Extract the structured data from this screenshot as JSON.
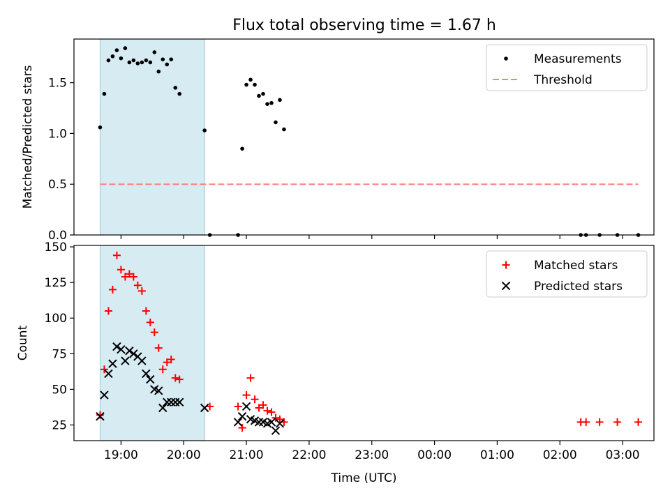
{
  "figure_title": "Flux total observing time = 1.67 h",
  "chart_data": [
    {
      "type": "scatter",
      "ylabel": "Matched/Predicted stars",
      "xlabel": "",
      "ylim": [
        0,
        1.93
      ],
      "yticks": [
        0.0,
        0.5,
        1.0,
        1.5
      ],
      "ytick_labels": [
        "0.0",
        "0.5",
        "1.0",
        "1.5"
      ],
      "legend_position": "top-right",
      "highlight_span": {
        "x0": "18:40",
        "x1": "20:20",
        "color": "#add8e6"
      },
      "series": [
        {
          "name": "Measurements",
          "marker": "dot",
          "color": "#000000",
          "points": [
            [
              "18:40",
              1.06
            ],
            [
              "18:44",
              1.39
            ],
            [
              "18:48",
              1.72
            ],
            [
              "18:52",
              1.76
            ],
            [
              "18:56",
              1.82
            ],
            [
              "19:00",
              1.74
            ],
            [
              "19:04",
              1.84
            ],
            [
              "19:08",
              1.7
            ],
            [
              "19:12",
              1.72
            ],
            [
              "19:16",
              1.69
            ],
            [
              "19:20",
              1.7
            ],
            [
              "19:24",
              1.72
            ],
            [
              "19:28",
              1.7
            ],
            [
              "19:32",
              1.8
            ],
            [
              "19:36",
              1.61
            ],
            [
              "19:40",
              1.73
            ],
            [
              "19:44",
              1.68
            ],
            [
              "19:48",
              1.73
            ],
            [
              "19:52",
              1.45
            ],
            [
              "19:56",
              1.39
            ],
            [
              "20:20",
              1.03
            ],
            [
              "20:25",
              0.0
            ],
            [
              "20:52",
              0.0
            ],
            [
              "20:56",
              0.85
            ],
            [
              "21:00",
              1.48
            ],
            [
              "21:04",
              1.53
            ],
            [
              "21:08",
              1.48
            ],
            [
              "21:12",
              1.37
            ],
            [
              "21:16",
              1.39
            ],
            [
              "21:20",
              1.29
            ],
            [
              "21:24",
              1.3
            ],
            [
              "21:28",
              1.11
            ],
            [
              "21:32",
              1.33
            ],
            [
              "21:36",
              1.04
            ],
            [
              "02:20",
              0.0
            ],
            [
              "02:25",
              0.0
            ],
            [
              "02:38",
              0.0
            ],
            [
              "02:55",
              0.0
            ],
            [
              "03:15",
              0.0
            ]
          ]
        },
        {
          "name": "Threshold",
          "marker": "dashed-line",
          "color": "#ff7f7f",
          "points": [
            [
              "18:40",
              0.5
            ],
            [
              "03:15",
              0.5
            ]
          ]
        }
      ]
    },
    {
      "type": "scatter",
      "ylabel": "Count",
      "xlabel": "Time (UTC)",
      "ylim": [
        14,
        151
      ],
      "yticks": [
        25,
        50,
        75,
        100,
        125,
        150
      ],
      "ytick_labels": [
        "25",
        "50",
        "75",
        "100",
        "125",
        "150"
      ],
      "xtick_labels": [
        "19:00",
        "20:00",
        "21:00",
        "22:00",
        "23:00",
        "00:00",
        "01:00",
        "02:00",
        "03:00"
      ],
      "legend_position": "top-right",
      "highlight_span": {
        "x0": "18:40",
        "x1": "20:20",
        "color": "#add8e6"
      },
      "series": [
        {
          "name": "Matched stars",
          "marker": "plus",
          "color": "#ff0000",
          "points": [
            [
              "18:40",
              32
            ],
            [
              "18:44",
              64
            ],
            [
              "18:48",
              105
            ],
            [
              "18:52",
              120
            ],
            [
              "18:56",
              144
            ],
            [
              "19:00",
              134
            ],
            [
              "19:04",
              129
            ],
            [
              "19:08",
              131
            ],
            [
              "19:12",
              129
            ],
            [
              "19:16",
              123
            ],
            [
              "19:20",
              119
            ],
            [
              "19:24",
              105
            ],
            [
              "19:28",
              97
            ],
            [
              "19:32",
              90
            ],
            [
              "19:36",
              79
            ],
            [
              "19:40",
              64
            ],
            [
              "19:44",
              69
            ],
            [
              "19:48",
              71
            ],
            [
              "19:52",
              58
            ],
            [
              "19:56",
              57
            ],
            [
              "20:25",
              38
            ],
            [
              "20:52",
              38
            ],
            [
              "20:56",
              23
            ],
            [
              "21:00",
              46
            ],
            [
              "21:04",
              58
            ],
            [
              "21:08",
              43
            ],
            [
              "21:12",
              37
            ],
            [
              "21:16",
              39
            ],
            [
              "21:20",
              35
            ],
            [
              "21:24",
              34
            ],
            [
              "21:28",
              30
            ],
            [
              "21:32",
              29
            ],
            [
              "21:36",
              27
            ],
            [
              "02:20",
              27
            ],
            [
              "02:25",
              27
            ],
            [
              "02:38",
              27
            ],
            [
              "02:55",
              27
            ],
            [
              "03:15",
              27
            ]
          ]
        },
        {
          "name": "Predicted stars",
          "marker": "x",
          "color": "#000000",
          "points": [
            [
              "18:40",
              31
            ],
            [
              "18:44",
              46
            ],
            [
              "18:48",
              61
            ],
            [
              "18:52",
              68
            ],
            [
              "18:56",
              80
            ],
            [
              "19:00",
              78
            ],
            [
              "19:04",
              70
            ],
            [
              "19:08",
              77
            ],
            [
              "19:12",
              75
            ],
            [
              "19:16",
              73
            ],
            [
              "19:20",
              70
            ],
            [
              "19:24",
              61
            ],
            [
              "19:28",
              57
            ],
            [
              "19:32",
              50
            ],
            [
              "19:36",
              49
            ],
            [
              "19:40",
              37
            ],
            [
              "19:44",
              41
            ],
            [
              "19:48",
              41
            ],
            [
              "19:52",
              41
            ],
            [
              "19:56",
              41
            ],
            [
              "20:20",
              37
            ],
            [
              "20:52",
              27
            ],
            [
              "20:56",
              31
            ],
            [
              "21:00",
              38
            ],
            [
              "21:04",
              29
            ],
            [
              "21:08",
              28
            ],
            [
              "21:12",
              27
            ],
            [
              "21:16",
              27
            ],
            [
              "21:20",
              26
            ],
            [
              "21:24",
              27
            ],
            [
              "21:28",
              21
            ],
            [
              "21:32",
              26
            ]
          ]
        }
      ]
    }
  ]
}
